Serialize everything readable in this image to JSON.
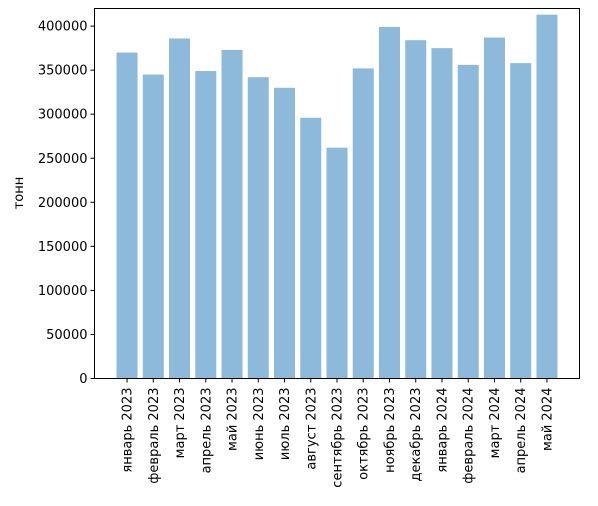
{
  "chart_data": {
    "type": "bar",
    "title": "",
    "xlabel": "",
    "ylabel": "тонн",
    "ylim": [
      0,
      420000
    ],
    "yticks": [
      0,
      50000,
      100000,
      150000,
      200000,
      250000,
      300000,
      350000,
      400000
    ],
    "grid": false,
    "legend": "none",
    "bar_color": "#8db9da",
    "categories": [
      "январь 2023",
      "февраль 2023",
      "март 2023",
      "апрель 2023",
      "май 2023",
      "июнь 2023",
      "июль 2023",
      "август 2023",
      "сентябрь 2023",
      "октябрь 2023",
      "ноябрь 2023",
      "декабрь 2023",
      "январь 2024",
      "февраль 2024",
      "март 2024",
      "апрель 2024",
      "май 2024"
    ],
    "values": [
      370000,
      345000,
      386000,
      349000,
      373000,
      342000,
      330000,
      296000,
      262000,
      352000,
      399000,
      384000,
      375000,
      356000,
      387000,
      358000,
      413000
    ]
  }
}
